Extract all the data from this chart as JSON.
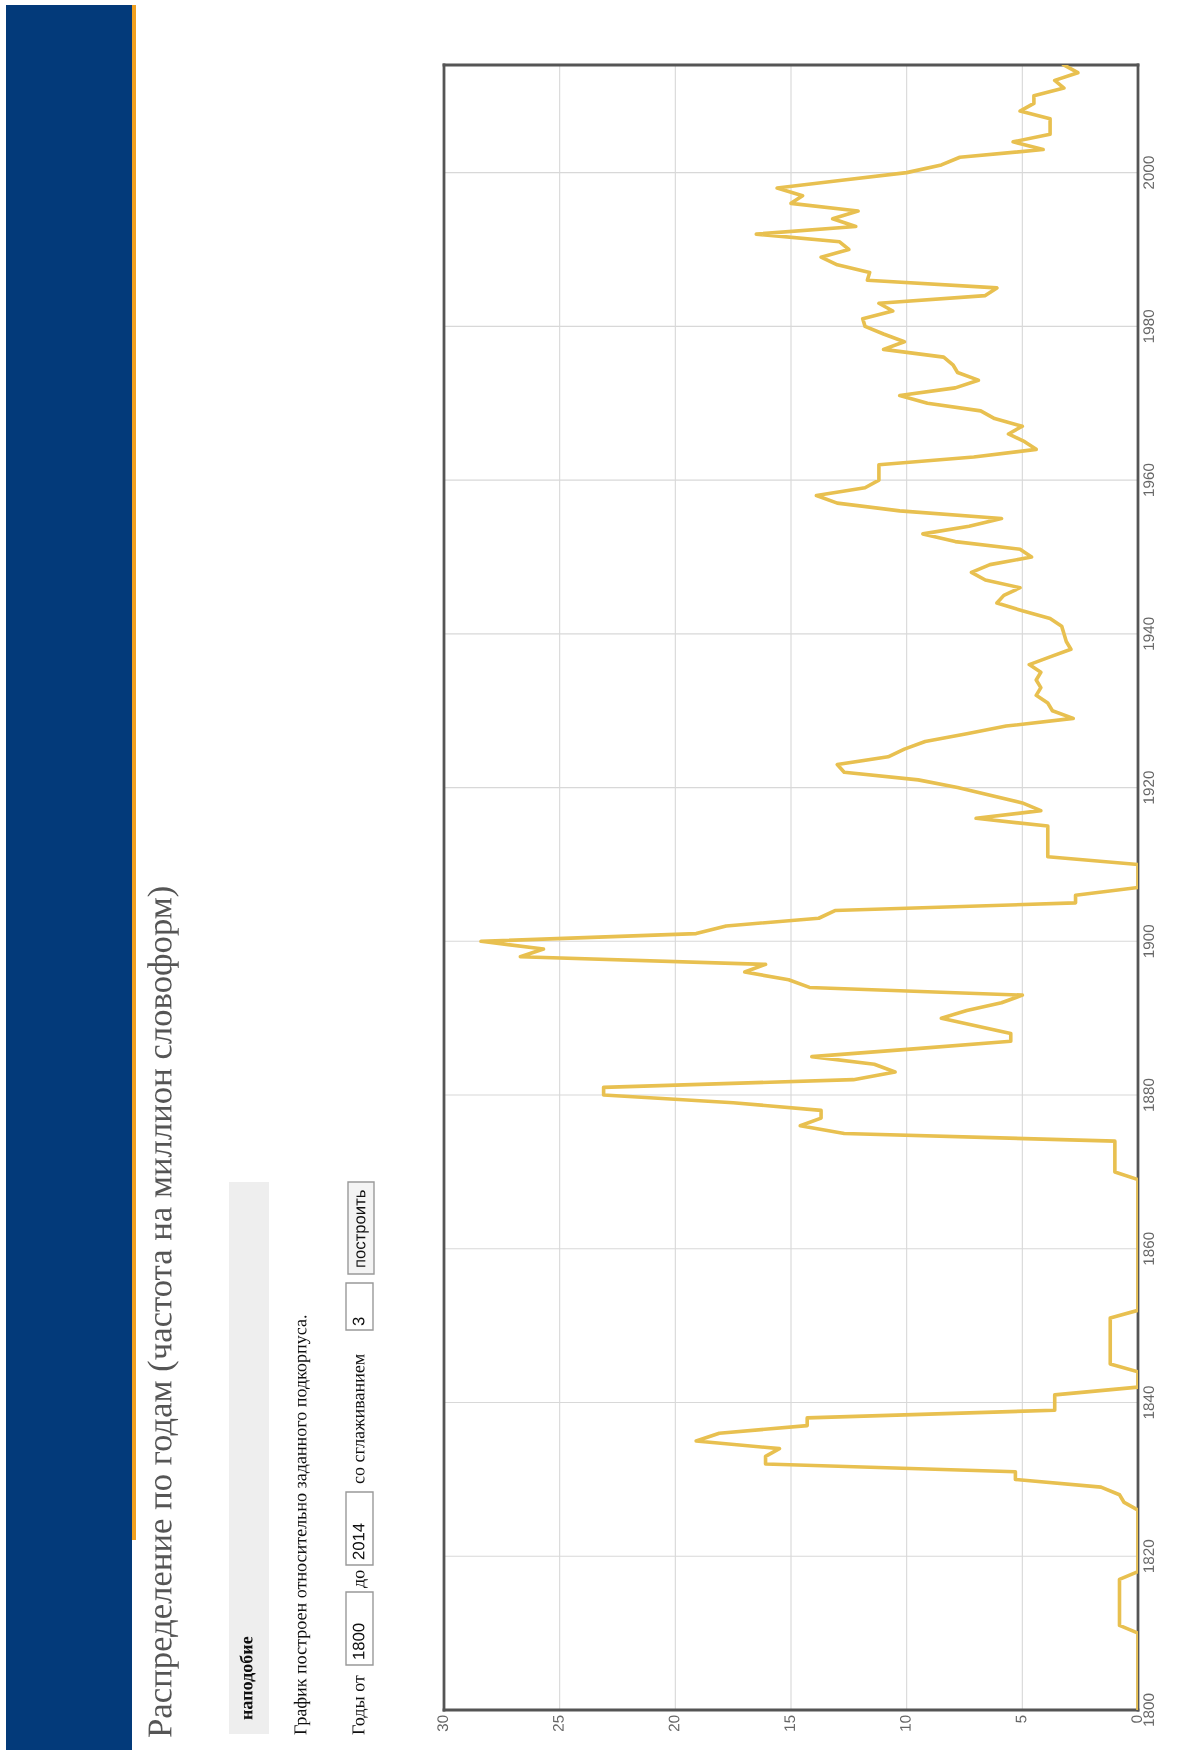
{
  "chart_data": {
    "type": "line",
    "title": "Распределение по годам (частота на миллион словоформ)",
    "annotations": [
      "наподобие",
      "График построен относительно заданного подкорпуса.",
      "Годы от",
      "1800",
      "до",
      "2014",
      "со сглаживанием",
      "3",
      "построить"
    ],
    "x": [
      1800,
      1810,
      1811,
      1817,
      1818,
      1826,
      1827,
      1828,
      1829,
      1830,
      1831,
      1832,
      1833,
      1834,
      1835,
      1836,
      1837,
      1838,
      1839,
      1841,
      1842,
      1844,
      1845,
      1851,
      1852,
      1869,
      1870,
      1874,
      1875,
      1876,
      1877,
      1878,
      1879,
      1880,
      1881,
      1882,
      1883,
      1884,
      1885,
      1886,
      1887,
      1888,
      1890,
      1891,
      1892,
      1893,
      1894,
      1895,
      1896,
      1897,
      1898,
      1899,
      1900,
      1901,
      1902,
      1903,
      1904,
      1905,
      1906,
      1907,
      1910,
      1911,
      1915,
      1916,
      1917,
      1918,
      1920,
      1921,
      1922,
      1923,
      1924,
      1925,
      1926,
      1927,
      1928,
      1929,
      1930,
      1931,
      1932,
      1933,
      1934,
      1935,
      1936,
      1937,
      1938,
      1939,
      1940,
      1941,
      1942,
      1943,
      1944,
      1945,
      1946,
      1947,
      1948,
      1949,
      1950,
      1951,
      1952,
      1953,
      1954,
      1955,
      1956,
      1957,
      1958,
      1959,
      1960,
      1961,
      1962,
      1963,
      1964,
      1965,
      1966,
      1967,
      1968,
      1969,
      1970,
      1971,
      1972,
      1973,
      1974,
      1975,
      1976,
      1977,
      1978,
      1979,
      1980,
      1981,
      1982,
      1983,
      1984,
      1985,
      1986,
      1987,
      1988,
      1989,
      1990,
      1991,
      1992,
      1993,
      1994,
      1995,
      1996,
      1997,
      1998,
      1999,
      2000,
      2001,
      2002,
      2003,
      2004,
      2005,
      2006,
      2007,
      2008,
      2009,
      2010,
      2011,
      2012,
      2013,
      2014
    ],
    "series": [
      {
        "color": "#e8c050",
        "values": [
          0,
          0,
          0.8,
          0.8,
          0,
          0,
          0.6,
          0.8,
          1.6,
          5.3,
          5.3,
          16.1,
          16.1,
          15.5,
          19.1,
          18.1,
          14.3,
          14.3,
          3.6,
          3.6,
          0,
          0,
          1.2,
          1.2,
          0,
          0,
          1.0,
          1.0,
          12.7,
          14.6,
          13.7,
          13.7,
          17.5,
          23.1,
          23.1,
          12.3,
          10.5,
          11.4,
          14.1,
          9.7,
          5.5,
          5.5,
          8.5,
          7.4,
          5.9,
          5.0,
          14.2,
          15.1,
          17.0,
          16.1,
          26.7,
          25.7,
          28.4,
          19.1,
          17.8,
          13.8,
          13.1,
          2.7,
          2.7,
          0,
          0,
          3.9,
          3.9,
          7.0,
          4.2,
          5.0,
          7.8,
          9.5,
          12.7,
          13.0,
          10.8,
          10.1,
          9.2,
          7.4,
          5.7,
          2.8,
          3.7,
          3.9,
          4.4,
          4.2,
          4.4,
          4.2,
          4.7,
          3.8,
          2.9,
          3.1,
          3.2,
          3.3,
          3.8,
          5.0,
          6.1,
          5.8,
          5.1,
          6.6,
          7.2,
          6.4,
          4.6,
          5.1,
          7.9,
          9.3,
          7.3,
          5.9,
          10.3,
          13.0,
          13.9,
          11.8,
          11.2,
          11.2,
          11.2,
          7.1,
          4.4,
          4.9,
          5.6,
          5.0,
          6.2,
          6.8,
          9.1,
          10.3,
          7.9,
          6.9,
          7.8,
          8.0,
          8.4,
          11.0,
          10.1,
          11.0,
          11.8,
          11.9,
          10.6,
          11.2,
          6.6,
          6.1,
          11.7,
          11.6,
          13.0,
          13.7,
          12.5,
          12.9,
          16.5,
          12.2,
          13.2,
          12.1,
          15.0,
          14.5,
          15.6,
          12.8,
          10.0,
          8.5,
          7.7,
          4.1,
          5.4,
          3.8,
          3.8,
          3.8,
          5.1,
          4.5,
          4.5,
          3.2,
          3.6,
          2.6,
          3.2
        ]
      }
    ],
    "orientation": "horizontal",
    "ylim": [
      1800,
      2014
    ],
    "yticks": [
      1800,
      1820,
      1840,
      1860,
      1880,
      1900,
      1920,
      1940,
      1960,
      1980,
      2000
    ],
    "xlim": [
      30,
      0
    ],
    "xticks": [
      0,
      5,
      10,
      15,
      20,
      25,
      30
    ],
    "grid": true,
    "marker": "none",
    "line_style": "solid"
  }
}
